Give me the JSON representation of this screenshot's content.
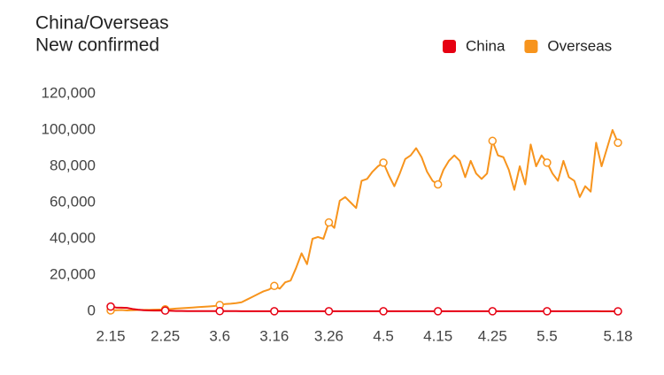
{
  "chart_data": {
    "type": "line",
    "title": "China/Overseas",
    "subtitle": "New confirmed",
    "categories": [
      "2.15",
      null,
      null,
      null,
      null,
      null,
      null,
      null,
      null,
      null,
      "2.25",
      null,
      null,
      null,
      null,
      null,
      null,
      null,
      null,
      null,
      "3.6",
      null,
      null,
      null,
      null,
      null,
      null,
      null,
      null,
      null,
      "3.16",
      null,
      null,
      null,
      null,
      null,
      null,
      null,
      null,
      null,
      "3.26",
      null,
      null,
      null,
      null,
      null,
      null,
      null,
      null,
      null,
      "4.5",
      null,
      null,
      null,
      null,
      null,
      null,
      null,
      null,
      null,
      "4.15",
      null,
      null,
      null,
      null,
      null,
      null,
      null,
      null,
      null,
      "4.25",
      null,
      null,
      null,
      null,
      null,
      null,
      null,
      null,
      null,
      "5.5",
      null,
      null,
      null,
      null,
      null,
      null,
      null,
      null,
      null,
      null,
      null,
      null,
      "5.18"
    ],
    "series": [
      {
        "name": "China",
        "color": "#e60012",
        "values": [
          2600,
          2100,
          2000,
          1900,
          1300,
          900,
          600,
          500,
          400,
          400,
          400,
          300,
          200,
          200,
          100,
          100,
          100,
          100,
          100,
          100,
          100,
          100,
          100,
          100,
          50,
          50,
          50,
          50,
          50,
          50,
          50,
          50,
          50,
          50,
          50,
          50,
          50,
          50,
          50,
          50,
          50,
          50,
          50,
          50,
          50,
          50,
          50,
          50,
          50,
          50,
          50,
          50,
          50,
          50,
          50,
          50,
          50,
          50,
          50,
          50,
          50,
          50,
          50,
          50,
          50,
          50,
          50,
          50,
          50,
          50,
          50,
          50,
          50,
          50,
          50,
          50,
          50,
          50,
          50,
          50,
          50,
          50,
          50,
          50,
          50,
          50,
          50,
          50,
          50,
          50,
          10,
          10,
          10,
          10
        ]
      },
      {
        "name": "Overseas",
        "color": "#f7941d",
        "values": [
          500,
          600,
          700,
          500,
          600,
          700,
          800,
          800,
          900,
          1000,
          1100,
          1300,
          1500,
          1700,
          1900,
          2100,
          2300,
          2500,
          2700,
          2900,
          3500,
          4000,
          4200,
          4500,
          5000,
          6500,
          8000,
          9500,
          11000,
          12000,
          14000,
          12500,
          16000,
          17000,
          24000,
          32000,
          26000,
          40000,
          41000,
          40000,
          49000,
          46000,
          61000,
          63000,
          60000,
          57000,
          72000,
          73000,
          77000,
          80000,
          82000,
          75000,
          69000,
          76000,
          84000,
          86000,
          90000,
          85000,
          77000,
          72000,
          70000,
          78000,
          83000,
          86000,
          83000,
          74000,
          83000,
          76000,
          73000,
          76000,
          94000,
          86000,
          85000,
          78000,
          67000,
          80000,
          70000,
          92000,
          80000,
          86000,
          82000,
          76000,
          72000,
          83000,
          74000,
          72000,
          63000,
          69000,
          66000,
          93000,
          80000,
          90000,
          100000,
          93000
        ]
      }
    ],
    "ylim": [
      0,
      120000
    ],
    "yticks": [
      0,
      {
        "value": 20000,
        "label": "20,000"
      },
      {
        "value": 40000,
        "label": "40,000"
      },
      {
        "value": 60000,
        "label": "60,000"
      },
      {
        "value": 80000,
        "label": "80,000"
      },
      {
        "value": 100000,
        "label": "100,000"
      },
      {
        "value": 120000,
        "label": "120,000"
      }
    ],
    "grid": false
  }
}
